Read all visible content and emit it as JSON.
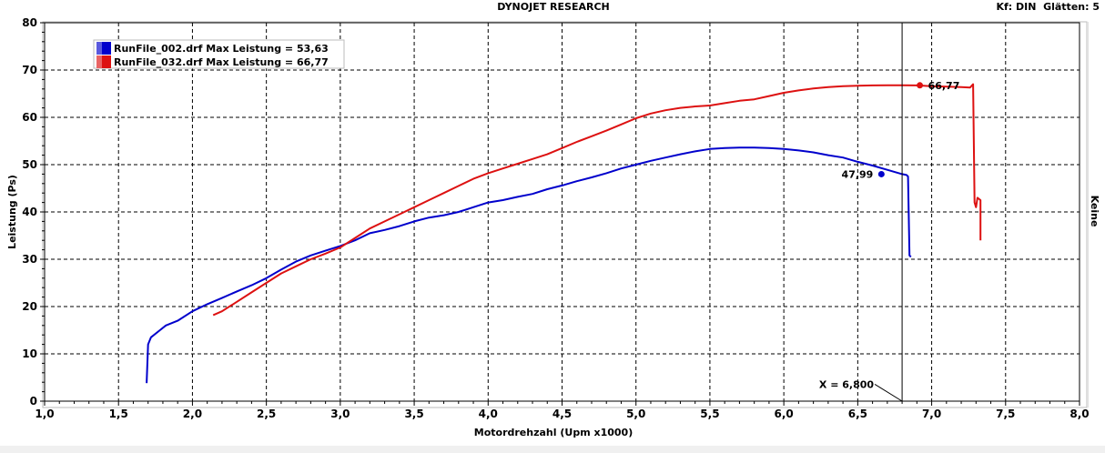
{
  "header": {
    "title": "DYNOJET RESEARCH",
    "right": "Kf: DIN  Glätten: 5"
  },
  "right_axis_label": "Keine",
  "cursor": {
    "readout": "X = 6,800",
    "x": 6.8
  },
  "legend": [
    {
      "text": "RunFile_002.drf Max Leistung = 53,63",
      "color": "#0000cc"
    },
    {
      "text": "RunFile_032.drf Max Leistung = 66,77",
      "color": "#dd1111"
    }
  ],
  "chart_data": {
    "type": "line",
    "title": "DYNOJET RESEARCH",
    "xlabel": "Motordrehzahl (Upm x1000)",
    "ylabel": "Leistung (Ps)",
    "xlim": [
      1.0,
      8.0
    ],
    "ylim": [
      0,
      80
    ],
    "x_ticks": [
      "1,0",
      "1,5",
      "2,0",
      "2,5",
      "3,0",
      "3,5",
      "4,0",
      "4,5",
      "5,0",
      "5,5",
      "6,0",
      "6,5",
      "7,0",
      "7,5",
      "8,0"
    ],
    "y_ticks": [
      "0",
      "10",
      "20",
      "30",
      "40",
      "50",
      "60",
      "70",
      "80"
    ],
    "grid": true,
    "legend_position": "top-left",
    "series": [
      {
        "name": "RunFile_002.drf",
        "color": "#0000cc",
        "points": [
          [
            1.69,
            3.8
          ],
          [
            1.7,
            12.0
          ],
          [
            1.72,
            13.5
          ],
          [
            1.78,
            15.0
          ],
          [
            1.82,
            16.0
          ],
          [
            1.9,
            17.0
          ],
          [
            2.0,
            19.0
          ],
          [
            2.1,
            20.5
          ],
          [
            2.2,
            21.8
          ],
          [
            2.3,
            23.2
          ],
          [
            2.4,
            24.5
          ],
          [
            2.5,
            26.0
          ],
          [
            2.6,
            27.8
          ],
          [
            2.7,
            29.5
          ],
          [
            2.8,
            30.8
          ],
          [
            2.9,
            31.8
          ],
          [
            3.0,
            32.8
          ],
          [
            3.1,
            34.0
          ],
          [
            3.2,
            35.5
          ],
          [
            3.3,
            36.2
          ],
          [
            3.4,
            37.0
          ],
          [
            3.5,
            38.0
          ],
          [
            3.6,
            38.8
          ],
          [
            3.7,
            39.3
          ],
          [
            3.8,
            40.0
          ],
          [
            3.9,
            41.0
          ],
          [
            4.0,
            42.0
          ],
          [
            4.1,
            42.5
          ],
          [
            4.2,
            43.2
          ],
          [
            4.3,
            43.8
          ],
          [
            4.4,
            44.8
          ],
          [
            4.5,
            45.6
          ],
          [
            4.6,
            46.5
          ],
          [
            4.7,
            47.3
          ],
          [
            4.8,
            48.2
          ],
          [
            4.9,
            49.2
          ],
          [
            5.0,
            50.0
          ],
          [
            5.1,
            50.8
          ],
          [
            5.2,
            51.5
          ],
          [
            5.3,
            52.2
          ],
          [
            5.4,
            52.8
          ],
          [
            5.5,
            53.3
          ],
          [
            5.6,
            53.5
          ],
          [
            5.7,
            53.6
          ],
          [
            5.8,
            53.6
          ],
          [
            5.9,
            53.5
          ],
          [
            6.0,
            53.3
          ],
          [
            6.1,
            53.0
          ],
          [
            6.2,
            52.6
          ],
          [
            6.3,
            52.0
          ],
          [
            6.4,
            51.5
          ],
          [
            6.5,
            50.6
          ],
          [
            6.6,
            49.8
          ],
          [
            6.7,
            48.9
          ],
          [
            6.8,
            48.0
          ],
          [
            6.83,
            47.8
          ],
          [
            6.84,
            47.5
          ],
          [
            6.85,
            30.8
          ],
          [
            6.86,
            30.5
          ]
        ],
        "marker": {
          "x": 6.66,
          "y": 47.99,
          "label": "47,99"
        }
      },
      {
        "name": "RunFile_032.drf",
        "color": "#dd1111",
        "points": [
          [
            2.14,
            18.2
          ],
          [
            2.2,
            19.0
          ],
          [
            2.3,
            21.0
          ],
          [
            2.4,
            23.0
          ],
          [
            2.5,
            25.0
          ],
          [
            2.6,
            27.0
          ],
          [
            2.7,
            28.5
          ],
          [
            2.8,
            30.0
          ],
          [
            2.9,
            31.2
          ],
          [
            3.0,
            32.5
          ],
          [
            3.1,
            34.5
          ],
          [
            3.2,
            36.5
          ],
          [
            3.3,
            38.0
          ],
          [
            3.4,
            39.5
          ],
          [
            3.5,
            41.0
          ],
          [
            3.6,
            42.5
          ],
          [
            3.7,
            44.0
          ],
          [
            3.8,
            45.5
          ],
          [
            3.9,
            47.0
          ],
          [
            4.0,
            48.2
          ],
          [
            4.1,
            49.2
          ],
          [
            4.2,
            50.2
          ],
          [
            4.3,
            51.2
          ],
          [
            4.4,
            52.2
          ],
          [
            4.5,
            53.5
          ],
          [
            4.6,
            54.8
          ],
          [
            4.7,
            56.0
          ],
          [
            4.8,
            57.2
          ],
          [
            4.9,
            58.5
          ],
          [
            5.0,
            59.8
          ],
          [
            5.1,
            60.8
          ],
          [
            5.2,
            61.5
          ],
          [
            5.3,
            62.0
          ],
          [
            5.4,
            62.3
          ],
          [
            5.5,
            62.5
          ],
          [
            5.6,
            63.0
          ],
          [
            5.7,
            63.5
          ],
          [
            5.8,
            63.8
          ],
          [
            5.9,
            64.5
          ],
          [
            6.0,
            65.2
          ],
          [
            6.1,
            65.7
          ],
          [
            6.2,
            66.1
          ],
          [
            6.3,
            66.4
          ],
          [
            6.4,
            66.6
          ],
          [
            6.5,
            66.7
          ],
          [
            6.6,
            66.75
          ],
          [
            6.7,
            66.77
          ],
          [
            6.8,
            66.77
          ],
          [
            6.9,
            66.75
          ],
          [
            7.0,
            66.6
          ],
          [
            7.1,
            66.5
          ],
          [
            7.2,
            66.4
          ],
          [
            7.26,
            66.3
          ],
          [
            7.28,
            67.0
          ],
          [
            7.29,
            42.0
          ],
          [
            7.3,
            41.0
          ],
          [
            7.31,
            43.0
          ],
          [
            7.33,
            42.5
          ],
          [
            7.33,
            34.0
          ]
        ],
        "marker": {
          "x": 6.92,
          "y": 66.77,
          "label": "66,77"
        }
      }
    ]
  }
}
